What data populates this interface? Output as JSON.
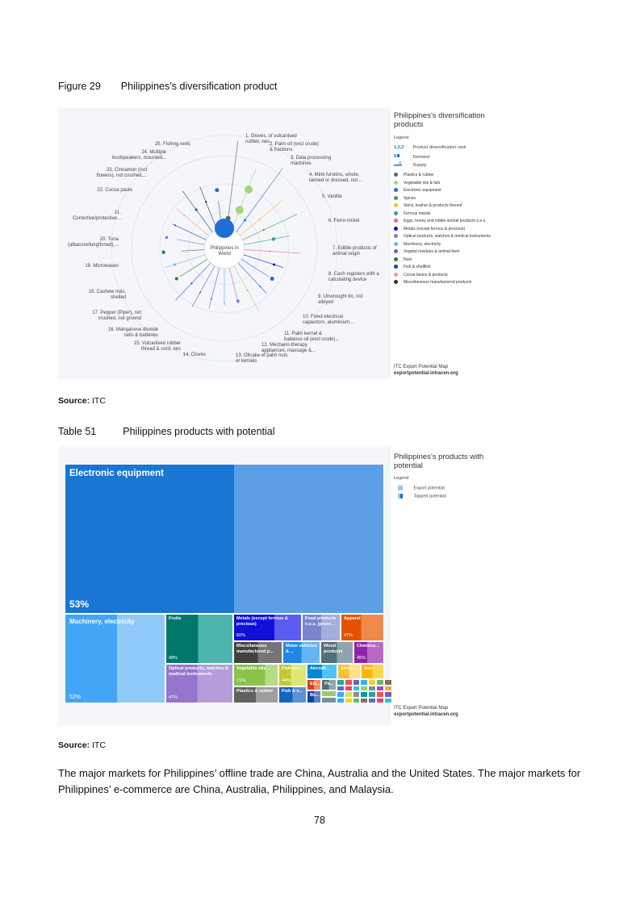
{
  "figure": {
    "caption_num": "Figure 29",
    "caption_title": "Philippines’s diversification product",
    "center_label": "Philippines in World",
    "legend": {
      "title": "Philippines's diversification products",
      "legend_label": "Legend",
      "rank_glyph": "1,2,3",
      "rank_label": "Product diversification rank",
      "demand_label": "Demand",
      "supply_label": "Supply",
      "categories": [
        {
          "name": "Plastics & rubber",
          "color": "#616161"
        },
        {
          "name": "Vegetable oils & fats",
          "color": "#a5d67a"
        },
        {
          "name": "Electronic equipment",
          "color": "#1e6fd4"
        },
        {
          "name": "Spices",
          "color": "#43a047"
        },
        {
          "name": "Skins, leather & products thereof",
          "color": "#fbc02d"
        },
        {
          "name": "Ferrous metals",
          "color": "#26a69a"
        },
        {
          "name": "Eggs, honey and edible animal products n.e.s.",
          "color": "#f06292"
        },
        {
          "name": "Metals (except ferrous & precious)",
          "color": "#1010d8"
        },
        {
          "name": "Optical products, watches & medical instruments",
          "color": "#9575cd"
        },
        {
          "name": "Machinery, electricity",
          "color": "#64b5f6"
        },
        {
          "name": "Vegetal residues & animal feed",
          "color": "#5c6bc0"
        },
        {
          "name": "Nuts",
          "color": "#2e7d32"
        },
        {
          "name": "Fish & shellfish",
          "color": "#0d47a1"
        },
        {
          "name": "Cocoa beans & products",
          "color": "#ef9a9a"
        },
        {
          "name": "Miscellaneous manufactured products",
          "color": "#333333"
        }
      ],
      "credit_line1": "ITC Export Potential Map",
      "credit_line2": "exportpotential.intracen.org"
    },
    "products": [
      {
        "label1": "1. Gloves, of vulcanised",
        "label2": "rubber, nes"
      },
      {
        "label1": "2. Palm oil (excl crude)",
        "label2": "& fractions"
      },
      {
        "label1": "3. Data processing",
        "label2": "machines"
      },
      {
        "label1": "4. Mink furskins, whole,",
        "label2": "tanned or dressed, not..."
      },
      {
        "label1": "5. Vanilla",
        "label2": ""
      },
      {
        "label1": "6. Ferro-nickel",
        "label2": ""
      },
      {
        "label1": "7. Edible products of",
        "label2": "animal origin"
      },
      {
        "label1": "8. Cash registers with a",
        "label2": "calculating device"
      },
      {
        "label1": "9. Unwrought tin, not",
        "label2": "alloyed"
      },
      {
        "label1": "10. Fixed electrical",
        "label2": "capacitors, aluminium..."
      },
      {
        "label1": "11. Palm kernel &",
        "label2": "babassu oil (excl crude)..."
      },
      {
        "label1": "12. Mechano-therapy",
        "label2": "appliances, massage &..."
      },
      {
        "label1": "13. Oilcake of palm nuts",
        "label2": "or kernels"
      },
      {
        "label1": "14. Cloves",
        "label2": ""
      },
      {
        "label1": "15. Vulcanised rubber",
        "label2": "thread & cord, nes"
      },
      {
        "label1": "16. Manganese dioxide",
        "label2": "cells & batteries"
      },
      {
        "label1": "17. Pepper (Piper), not",
        "label2": "crushed, not ground"
      },
      {
        "label1": "18. Cashew nuts,",
        "label2": "shelled"
      },
      {
        "label1": "19. Microwaves",
        "label2": ""
      },
      {
        "label1": "20. Tuna",
        "label2": "(albacore/longfinned),..."
      },
      {
        "label1": "21.",
        "label2": "Corrective/protective..."
      },
      {
        "label1": "22. Cocoa paste",
        "label2": ""
      },
      {
        "label1": "23. Cinnamon (incl",
        "label2": "flowers), not crushed,..."
      },
      {
        "label1": "24. Multiple",
        "label2": "loudspeakers, mounted..."
      },
      {
        "label1": "25. Fishing reels",
        "label2": ""
      }
    ],
    "source_label": "Source:",
    "source_value": "ITC"
  },
  "table": {
    "caption_num": "Table 51",
    "caption_title": "Philippines products with potential",
    "legend": {
      "title": "Philippines's products with potential",
      "legend_label": "Legend",
      "export_potential": "Export potential",
      "tapped_potential": "Tapped potential",
      "credit_line1": "ITC Export Potential Map",
      "credit_line2": "exportpotential.intracen.org"
    },
    "tiles": [
      {
        "label": "Electronic equipment",
        "pct": "53%",
        "tapped": 0.53
      },
      {
        "label": "Machinery, electricity",
        "pct": "52%",
        "tapped": 0.52
      },
      {
        "label": "Fruits",
        "pct": "48%",
        "tapped": 0.48
      },
      {
        "label": "Metals (except ferrous & precious)",
        "pct": "60%",
        "tapped": 0.6
      },
      {
        "label": "Food products n.e.s. (proce...",
        "pct": "",
        "tapped": 0.5
      },
      {
        "label": "Apparel",
        "pct": "47%",
        "tapped": 0.47
      },
      {
        "label": "Miscellaneous manufactured p...",
        "pct": "",
        "tapped": 0.5
      },
      {
        "label": "Motor vehicles & ...",
        "pct": "",
        "tapped": 0.5
      },
      {
        "label": "Wood products",
        "pct": "",
        "tapped": 0.5
      },
      {
        "label": "Chemica...",
        "pct": "45%",
        "tapped": 0.45
      },
      {
        "label": "Optical products, watches & medical instruments",
        "pct": "47%",
        "tapped": 0.47
      },
      {
        "label": "Vegetable oils ...",
        "pct": "71%",
        "tapped": 0.71
      },
      {
        "label": "Fish pro...",
        "pct": "44%",
        "tapped": 0.44
      },
      {
        "label": "Aircraft...",
        "pct": "",
        "tapped": 0.5
      },
      {
        "label": "Skins...",
        "pct": "",
        "tapped": 0.5
      },
      {
        "label": "Gro...",
        "pct": "",
        "tapped": 0.5
      },
      {
        "label": "Plastics & rubber",
        "pct": "",
        "tapped": 0.5
      },
      {
        "label": "Fish & s...",
        "pct": "",
        "tapped": 0.5
      },
      {
        "label": "Ele...",
        "pct": "",
        "tapped": 0.5
      },
      {
        "label": "Pa...",
        "pct": "",
        "tapped": 0.5
      },
      {
        "label": "Bo...",
        "pct": "",
        "tapped": 0.5
      }
    ],
    "source_label": "Source:",
    "source_value": "ITC"
  },
  "paragraph": "The major markets for Philippines’ offline trade are China, Australia and the United States. The major markets for Philippines’ e-commerce are China, Australia, Philippines, and Malaysia.",
  "page_number": "78"
}
